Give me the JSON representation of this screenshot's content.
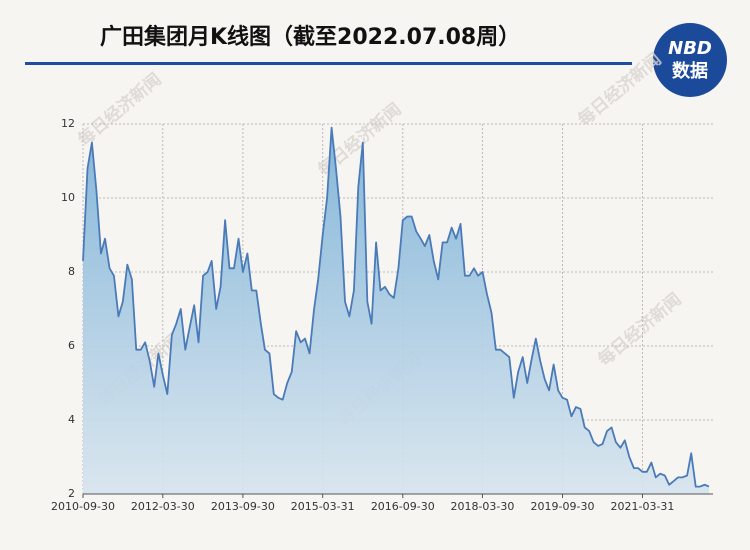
{
  "chart_data": {
    "type": "area",
    "title": "广田集团月K线图（截至2022.07.08周）",
    "logo": {
      "top": "NBD",
      "bottom": "数据"
    },
    "watermark": "每日经济新闻",
    "color": "#4a7ab8",
    "grid": true,
    "x": [
      "2010-09-30",
      "2010-10-31",
      "2010-11-30",
      "2010-12-31",
      "2011-01-31",
      "2011-02-28",
      "2011-03-31",
      "2011-04-30",
      "2011-05-31",
      "2011-06-30",
      "2011-07-31",
      "2011-08-31",
      "2011-09-30",
      "2011-10-31",
      "2011-11-30",
      "2011-12-31",
      "2012-01-31",
      "2012-02-29",
      "2012-03-31",
      "2012-04-30",
      "2012-05-31",
      "2012-06-30",
      "2012-07-31",
      "2012-08-31",
      "2012-09-30",
      "2012-10-31",
      "2012-11-30",
      "2012-12-31",
      "2013-01-31",
      "2013-02-28",
      "2013-03-31",
      "2013-04-30",
      "2013-05-31",
      "2013-06-30",
      "2013-07-31",
      "2013-08-31",
      "2013-09-30",
      "2013-10-31",
      "2013-11-30",
      "2013-12-31",
      "2014-01-31",
      "2014-02-28",
      "2014-03-31",
      "2014-04-30",
      "2014-05-31",
      "2014-06-30",
      "2014-07-31",
      "2014-08-31",
      "2014-09-30",
      "2014-10-31",
      "2014-11-30",
      "2014-12-31",
      "2015-01-31",
      "2015-02-28",
      "2015-03-31",
      "2015-04-30",
      "2015-05-31",
      "2015-06-30",
      "2015-07-31",
      "2015-08-31",
      "2015-09-30",
      "2015-10-31",
      "2015-11-30",
      "2015-12-31",
      "2016-01-31",
      "2016-02-29",
      "2016-03-31",
      "2016-04-30",
      "2016-05-31",
      "2016-06-30",
      "2016-07-31",
      "2016-08-31",
      "2016-09-30",
      "2016-10-31",
      "2016-11-30",
      "2016-12-31",
      "2017-01-31",
      "2017-02-28",
      "2017-03-31",
      "2017-04-30",
      "2017-05-31",
      "2017-06-30",
      "2017-07-31",
      "2017-08-31",
      "2017-09-30",
      "2017-10-31",
      "2017-11-30",
      "2017-12-31",
      "2018-01-31",
      "2018-02-28",
      "2018-03-31",
      "2018-04-30",
      "2018-05-31",
      "2018-06-30",
      "2018-07-31",
      "2018-08-31",
      "2018-09-30",
      "2018-10-31",
      "2018-11-30",
      "2018-12-31",
      "2019-01-31",
      "2019-02-28",
      "2019-03-31",
      "2019-04-30",
      "2019-05-31",
      "2019-06-30",
      "2019-07-31",
      "2019-08-31",
      "2019-09-30",
      "2019-10-31",
      "2019-11-30",
      "2019-12-31",
      "2020-01-31",
      "2020-02-29",
      "2020-03-31",
      "2020-04-30",
      "2020-05-31",
      "2020-06-30",
      "2020-07-31",
      "2020-08-31",
      "2020-09-30",
      "2020-10-31",
      "2020-11-30",
      "2020-12-31",
      "2021-01-31",
      "2021-02-28",
      "2021-03-31",
      "2021-04-30",
      "2021-05-31",
      "2021-06-30",
      "2021-07-31",
      "2021-08-31",
      "2021-09-30",
      "2021-10-31",
      "2021-11-30",
      "2021-12-31",
      "2022-01-31",
      "2022-02-28",
      "2022-03-31",
      "2022-04-30",
      "2022-05-31",
      "2022-06-30"
    ],
    "values": [
      8.3,
      10.8,
      11.5,
      10.2,
      8.5,
      8.9,
      8.1,
      7.9,
      6.8,
      7.2,
      8.2,
      7.8,
      5.9,
      5.9,
      6.1,
      5.6,
      4.9,
      5.8,
      5.2,
      4.7,
      6.3,
      6.6,
      7.0,
      5.9,
      6.5,
      7.1,
      6.1,
      7.9,
      8.0,
      8.3,
      7.0,
      7.6,
      9.4,
      8.1,
      8.1,
      8.9,
      8.0,
      8.5,
      7.5,
      7.5,
      6.6,
      5.9,
      5.8,
      4.7,
      4.6,
      4.55,
      5.0,
      5.3,
      6.4,
      6.1,
      6.2,
      5.8,
      7.0,
      7.8,
      9.0,
      10.0,
      11.9,
      10.8,
      9.5,
      7.2,
      6.8,
      7.5,
      10.3,
      11.5,
      7.2,
      6.6,
      8.8,
      7.5,
      7.6,
      7.4,
      7.3,
      8.1,
      9.4,
      9.5,
      9.5,
      9.1,
      8.9,
      8.7,
      9.0,
      8.3,
      7.8,
      8.8,
      8.8,
      9.2,
      8.9,
      9.3,
      7.9,
      7.9,
      8.1,
      7.9,
      8.0,
      7.4,
      6.9,
      5.9,
      5.9,
      5.8,
      5.7,
      4.6,
      5.3,
      5.7,
      5.0,
      5.6,
      6.2,
      5.6,
      5.1,
      4.8,
      5.5,
      4.8,
      4.6,
      4.55,
      4.1,
      4.35,
      4.3,
      3.8,
      3.7,
      3.4,
      3.3,
      3.35,
      3.7,
      3.8,
      3.4,
      3.25,
      3.45,
      3.0,
      2.7,
      2.7,
      2.6,
      2.6,
      2.85,
      2.45,
      2.55,
      2.5,
      2.25,
      2.35,
      2.45,
      2.45,
      2.5,
      3.1,
      2.2,
      2.2,
      2.25,
      2.2
    ],
    "xlim": [
      "2010-09-30",
      "2022-06-30"
    ],
    "xticks": [
      "2010-09-30",
      "2012-03-30",
      "2013-09-30",
      "2015-03-31",
      "2016-09-30",
      "2018-03-30",
      "2019-09-30",
      "2021-03-31"
    ],
    "ylim": [
      2,
      12
    ],
    "yticks": [
      2,
      4,
      6,
      8,
      10,
      12
    ]
  }
}
